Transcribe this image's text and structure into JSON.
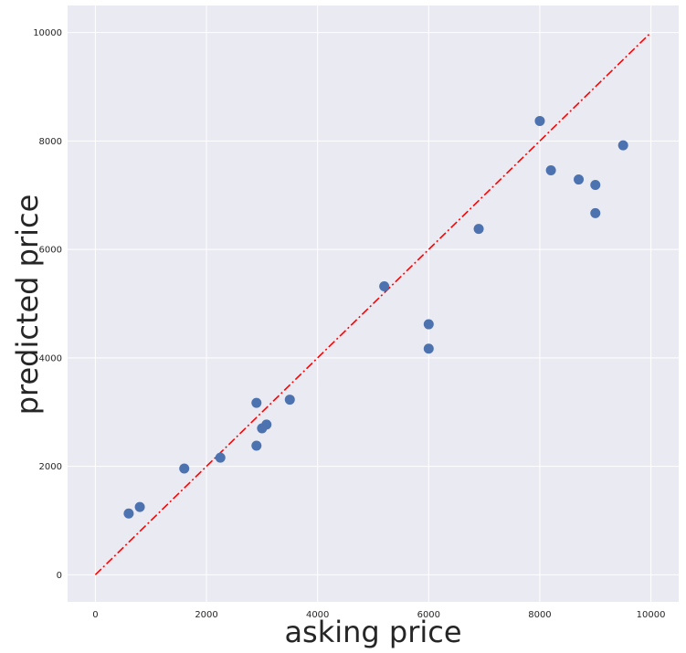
{
  "chart_data": {
    "type": "scatter",
    "title": "",
    "xlabel": "asking price",
    "ylabel": "predicted price",
    "xlim": [
      -500,
      10500
    ],
    "ylim": [
      -500,
      10500
    ],
    "x_ticks": [
      0,
      2000,
      4000,
      6000,
      8000,
      10000
    ],
    "y_ticks": [
      0,
      2000,
      4000,
      6000,
      8000,
      10000
    ],
    "grid": true,
    "background_color": "#EAEAF2",
    "grid_color": "#FFFFFF",
    "series": [
      {
        "marker_color": "#4C72B0",
        "points": [
          {
            "x": 600,
            "y": 1130
          },
          {
            "x": 800,
            "y": 1250
          },
          {
            "x": 1600,
            "y": 1960
          },
          {
            "x": 2250,
            "y": 2160
          },
          {
            "x": 2900,
            "y": 3170
          },
          {
            "x": 2900,
            "y": 2380
          },
          {
            "x": 3000,
            "y": 2700
          },
          {
            "x": 3080,
            "y": 2770
          },
          {
            "x": 3500,
            "y": 3230
          },
          {
            "x": 5200,
            "y": 5320
          },
          {
            "x": 6000,
            "y": 4620
          },
          {
            "x": 6000,
            "y": 4170
          },
          {
            "x": 6900,
            "y": 6380
          },
          {
            "x": 8000,
            "y": 8370
          },
          {
            "x": 8200,
            "y": 7460
          },
          {
            "x": 8700,
            "y": 7290
          },
          {
            "x": 9000,
            "y": 7190
          },
          {
            "x": 9000,
            "y": 6670
          },
          {
            "x": 9500,
            "y": 7920
          }
        ]
      }
    ],
    "reference_line": {
      "style": "dash-dot",
      "color": "#FF0000",
      "from": {
        "x": 0,
        "y": 0
      },
      "to": {
        "x": 10000,
        "y": 10000
      }
    }
  }
}
